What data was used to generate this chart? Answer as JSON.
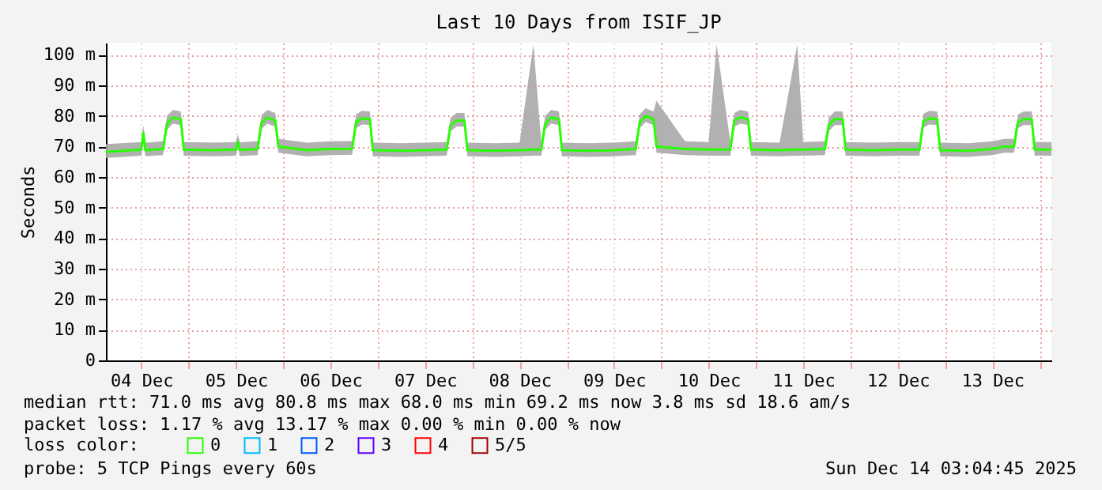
{
  "chart_data": {
    "type": "line",
    "title": "Last 10 Days from ISIF_JP",
    "ylabel": "Seconds",
    "ylim": [
      0,
      104
    ],
    "yticks": [
      0,
      {
        "value": 10,
        "label": "10 m"
      },
      {
        "value": 20,
        "label": "20 m"
      },
      {
        "value": 30,
        "label": "30 m"
      },
      {
        "value": 40,
        "label": "40 m"
      },
      {
        "value": 50,
        "label": "50 m"
      },
      {
        "value": 60,
        "label": "60 m"
      },
      {
        "value": 70,
        "label": "70 m"
      },
      {
        "value": 80,
        "label": "80 m"
      },
      {
        "value": 90,
        "label": "90 m"
      },
      {
        "value": 100,
        "label": "100 m"
      }
    ],
    "xlim": [
      "2025-12-04T03:00",
      "2025-12-14T03:00"
    ],
    "xticks": [
      {
        "value": "2025-12-04T12:00",
        "label": "04 Dec"
      },
      {
        "value": "2025-12-05T00:00",
        "label": null
      },
      {
        "value": "2025-12-05T12:00",
        "label": "05 Dec"
      },
      {
        "value": "2025-12-06T00:00",
        "label": null
      },
      {
        "value": "2025-12-06T12:00",
        "label": "06 Dec"
      },
      {
        "value": "2025-12-07T00:00",
        "label": null
      },
      {
        "value": "2025-12-07T12:00",
        "label": "07 Dec"
      },
      {
        "value": "2025-12-08T00:00",
        "label": null
      },
      {
        "value": "2025-12-08T12:00",
        "label": "08 Dec"
      },
      {
        "value": "2025-12-09T00:00",
        "label": null
      },
      {
        "value": "2025-12-09T12:00",
        "label": "09 Dec"
      },
      {
        "value": "2025-12-10T00:00",
        "label": null
      },
      {
        "value": "2025-12-10T12:00",
        "label": "10 Dec"
      },
      {
        "value": "2025-12-11T00:00",
        "label": null
      },
      {
        "value": "2025-12-11T12:00",
        "label": "11 Dec"
      },
      {
        "value": "2025-12-12T00:00",
        "label": null
      },
      {
        "value": "2025-12-12T12:00",
        "label": "12 Dec"
      },
      {
        "value": "2025-12-13T00:00",
        "label": null
      },
      {
        "value": "2025-12-13T12:00",
        "label": "13 Dec"
      },
      {
        "value": "2025-12-14T00:00",
        "label": null
      }
    ],
    "grid": true,
    "legend": "bottom left",
    "legend_title": "loss color:",
    "marker": "none",
    "line_style": "solid",
    "x": [
      "2025-12-04T03:00",
      "2025-12-04T06:00",
      "2025-12-04T12:00",
      "2025-12-04T12:30",
      "2025-12-04T13:00",
      "2025-12-04T17:30",
      "2025-12-04T18:30",
      "2025-12-04T20:00",
      "2025-12-04T22:00",
      "2025-12-04T22:45",
      "2025-12-05T06:00",
      "2025-12-05T12:00",
      "2025-12-05T12:30",
      "2025-12-05T13:00",
      "2025-12-05T17:30",
      "2025-12-05T18:30",
      "2025-12-05T20:00",
      "2025-12-05T22:00",
      "2025-12-05T22:45",
      "2025-12-06T06:00",
      "2025-12-06T12:00",
      "2025-12-06T17:30",
      "2025-12-06T18:30",
      "2025-12-06T20:00",
      "2025-12-06T22:00",
      "2025-12-06T22:45",
      "2025-12-07T06:00",
      "2025-12-07T12:00",
      "2025-12-07T17:30",
      "2025-12-07T18:30",
      "2025-12-07T20:00",
      "2025-12-07T22:00",
      "2025-12-07T22:45",
      "2025-12-08T06:00",
      "2025-12-08T12:00",
      "2025-12-08T15:30",
      "2025-12-08T17:30",
      "2025-12-08T18:30",
      "2025-12-08T20:00",
      "2025-12-08T22:00",
      "2025-12-08T22:45",
      "2025-12-09T06:00",
      "2025-12-09T12:00",
      "2025-12-09T17:30",
      "2025-12-09T18:30",
      "2025-12-09T20:00",
      "2025-12-09T22:00",
      "2025-12-09T22:45",
      "2025-12-10T06:00",
      "2025-12-10T12:00",
      "2025-12-10T14:00",
      "2025-12-10T17:30",
      "2025-12-10T18:30",
      "2025-12-10T20:00",
      "2025-12-10T22:00",
      "2025-12-10T22:45",
      "2025-12-11T06:00",
      "2025-12-11T10:30",
      "2025-12-11T12:00",
      "2025-12-11T17:30",
      "2025-12-11T18:30",
      "2025-12-11T20:00",
      "2025-12-11T22:00",
      "2025-12-11T22:45",
      "2025-12-12T06:00",
      "2025-12-12T12:00",
      "2025-12-12T17:30",
      "2025-12-12T18:30",
      "2025-12-12T20:00",
      "2025-12-12T22:00",
      "2025-12-12T22:45",
      "2025-12-13T06:00",
      "2025-12-13T12:00",
      "2025-12-13T15:00",
      "2025-12-13T17:30",
      "2025-12-13T18:30",
      "2025-12-13T20:00",
      "2025-12-13T22:00",
      "2025-12-13T22:45",
      "2025-12-14T03:00"
    ],
    "series": [
      {
        "name": "0",
        "color": "#26ff00",
        "values": [
          68.3,
          68.5,
          69,
          74.5,
          68.8,
          69.2,
          77.5,
          79.5,
          79,
          69,
          68.8,
          69,
          71.5,
          68.9,
          69.2,
          77.8,
          79.5,
          78.5,
          70,
          68.8,
          69.2,
          69.3,
          78,
          79.2,
          79,
          68.8,
          68.6,
          68.8,
          69,
          77,
          78.5,
          78.5,
          68.8,
          68.6,
          68.8,
          69,
          69,
          77.5,
          79.5,
          79,
          68.8,
          68.6,
          68.8,
          69.2,
          78,
          80,
          79,
          70,
          69.2,
          69,
          69,
          69,
          78.5,
          79.5,
          79,
          69,
          68.8,
          69,
          69,
          69.2,
          77,
          79,
          79,
          69,
          68.8,
          69,
          69,
          78.2,
          79.2,
          79,
          68.8,
          68.6,
          69.2,
          70,
          70,
          78,
          79,
          79,
          69,
          69
        ],
        "lower": [
          66.3,
          66.5,
          67,
          72.5,
          66.8,
          67.2,
          75.5,
          77.5,
          77,
          67,
          66.8,
          67,
          69.5,
          66.9,
          67.2,
          75.8,
          77.5,
          76.5,
          68,
          66.8,
          67.2,
          67.3,
          76,
          77.2,
          77,
          66.8,
          66.6,
          66.8,
          67,
          75,
          76.5,
          76.5,
          66.8,
          66.6,
          66.8,
          67,
          67,
          75.5,
          77.5,
          77,
          66.8,
          66.6,
          66.8,
          67.2,
          76,
          78,
          77,
          68,
          67.2,
          67,
          67,
          67,
          76.5,
          77.5,
          77,
          67,
          66.8,
          67,
          67,
          67.2,
          75,
          77,
          77,
          67,
          66.8,
          67,
          67,
          76.2,
          77.2,
          77,
          66.8,
          66.6,
          67.2,
          68,
          68,
          76,
          77,
          77,
          67,
          67
        ],
        "upper": [
          70.8,
          71,
          71.5,
          77,
          71.3,
          71.7,
          80,
          82,
          81.5,
          71.5,
          71.3,
          71.5,
          74,
          71.4,
          71.7,
          80.3,
          82,
          81,
          72.5,
          71.3,
          71.7,
          71.8,
          80.5,
          81.7,
          81.5,
          71.3,
          71.1,
          71.3,
          71.5,
          79.5,
          81,
          81,
          71.3,
          71.1,
          71.3,
          103.5,
          71.5,
          80,
          82,
          81.5,
          71.3,
          71.1,
          71.3,
          71.7,
          80.5,
          82.5,
          81.5,
          85,
          71.7,
          71.5,
          103.5,
          71.5,
          81,
          82,
          81.5,
          71.5,
          71.3,
          103.5,
          71.5,
          71.7,
          79.5,
          81.5,
          81.5,
          71.5,
          71.3,
          71.5,
          71.5,
          80.7,
          81.7,
          81.5,
          71.3,
          71.1,
          71.7,
          72.5,
          72.5,
          80.5,
          81.5,
          81.5,
          71.5,
          71.5
        ]
      },
      {
        "name": "1",
        "color": "#00b8ff",
        "values": [
          null,
          null,
          null,
          null,
          null,
          null,
          null,
          null,
          null,
          null,
          null,
          null,
          null,
          null,
          null,
          null,
          null,
          null,
          null,
          null,
          null,
          null,
          null,
          null,
          null,
          null,
          null,
          null,
          null,
          null,
          null,
          null,
          null,
          null,
          null,
          null,
          null,
          null,
          null,
          null,
          null,
          null,
          null,
          null,
          null,
          null,
          null,
          null,
          null,
          null,
          null,
          null,
          null,
          null,
          null,
          null,
          null,
          null,
          null,
          null,
          null,
          null,
          null,
          null,
          null,
          null,
          null,
          null,
          null,
          null,
          null,
          null,
          null,
          null,
          null,
          null,
          null,
          null,
          null,
          null
        ]
      },
      {
        "name": "2",
        "color": "#0059ff",
        "values": [
          null,
          null,
          null,
          null,
          null,
          null,
          null,
          null,
          null,
          null,
          null,
          null,
          null,
          null,
          null,
          null,
          null,
          null,
          null,
          null,
          null,
          null,
          null,
          null,
          null,
          null,
          null,
          null,
          null,
          null,
          null,
          null,
          null,
          null,
          null,
          null,
          null,
          null,
          null,
          null,
          null,
          null,
          null,
          null,
          null,
          null,
          null,
          null,
          null,
          null,
          null,
          null,
          null,
          null,
          null,
          null,
          null,
          null,
          null,
          null,
          null,
          null,
          null,
          null,
          null,
          null,
          null,
          null,
          null,
          null,
          null,
          null,
          null,
          null,
          null,
          null,
          null,
          null,
          null,
          null
        ]
      },
      {
        "name": "3",
        "color": "#5e00ff",
        "values": [
          null,
          null,
          null,
          null,
          null,
          null,
          null,
          null,
          null,
          null,
          null,
          null,
          null,
          null,
          null,
          null,
          null,
          null,
          null,
          null,
          null,
          null,
          null,
          null,
          null,
          null,
          null,
          null,
          null,
          null,
          null,
          null,
          null,
          null,
          null,
          null,
          null,
          null,
          null,
          null,
          null,
          null,
          null,
          null,
          null,
          null,
          null,
          null,
          null,
          null,
          null,
          null,
          null,
          null,
          null,
          null,
          null,
          null,
          null,
          null,
          null,
          null,
          null,
          null,
          null,
          null,
          null,
          null,
          null,
          null,
          null,
          null,
          null,
          null,
          null,
          null,
          null,
          null,
          null,
          null
        ]
      },
      {
        "name": "4",
        "color": "#ff0000",
        "values": [
          null,
          null,
          null,
          null,
          null,
          null,
          null,
          null,
          null,
          null,
          null,
          null,
          null,
          null,
          null,
          null,
          null,
          null,
          null,
          null,
          null,
          null,
          null,
          null,
          null,
          null,
          null,
          null,
          null,
          null,
          null,
          null,
          null,
          null,
          null,
          null,
          null,
          null,
          null,
          null,
          null,
          null,
          null,
          null,
          null,
          null,
          null,
          null,
          null,
          null,
          null,
          null,
          null,
          null,
          null,
          null,
          null,
          null,
          null,
          null,
          null,
          null,
          null,
          null,
          null,
          null,
          null,
          null,
          null,
          null,
          null,
          null,
          null,
          null,
          null,
          null,
          null,
          null,
          null,
          null
        ]
      },
      {
        "name": "5/5",
        "color": "#a00000",
        "values": [
          null,
          null,
          null,
          null,
          null,
          null,
          null,
          null,
          null,
          null,
          null,
          null,
          null,
          null,
          null,
          null,
          null,
          null,
          null,
          null,
          null,
          null,
          null,
          null,
          null,
          null,
          null,
          null,
          null,
          null,
          null,
          null,
          null,
          null,
          null,
          null,
          null,
          null,
          null,
          null,
          null,
          null,
          null,
          null,
          null,
          null,
          null,
          null,
          null,
          null,
          null,
          null,
          null,
          null,
          null,
          null,
          null,
          null,
          null,
          null,
          null,
          null,
          null,
          null,
          null,
          null,
          null,
          null,
          null,
          null,
          null,
          null,
          null,
          null,
          null,
          null,
          null,
          null,
          null,
          null
        ]
      }
    ],
    "annotations": [
      "median rtt:  71.0 ms avg   80.8 ms max   68.0 ms min   69.2 ms now   3.8 ms sd   18.6    am/s",
      "packet loss: 1.17 % avg  13.17 % max   0.00 % min   0.00 % now",
      "probe:       5 TCP Pings every 60s",
      "Sun Dec 14 03:04:45 2025"
    ]
  }
}
